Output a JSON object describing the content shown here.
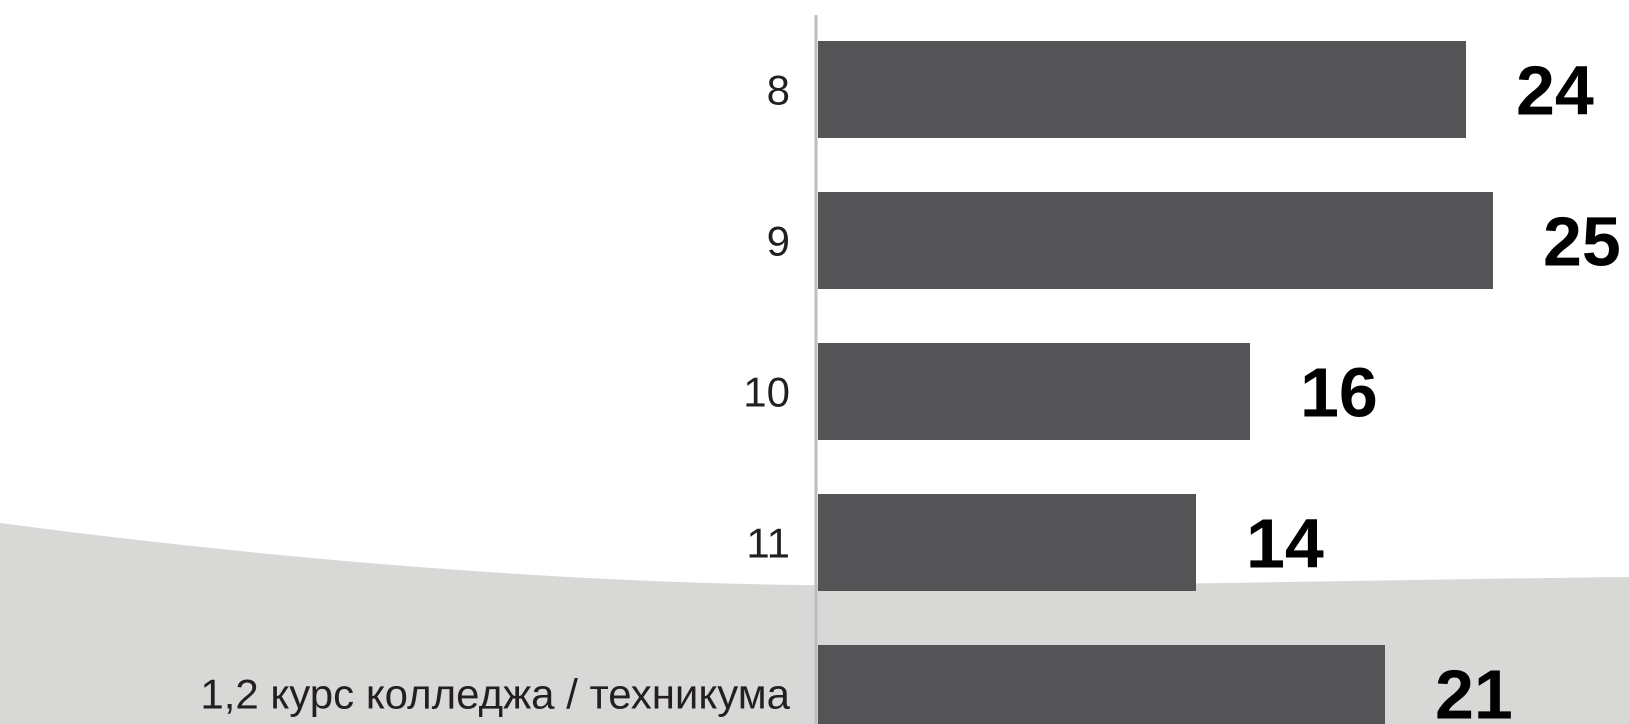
{
  "colors": {
    "background": "#ffffff",
    "wave": "#d8d8d6",
    "bar": "#545456",
    "axis": "#bdbdbd",
    "label": "#231f20",
    "value": "#000000"
  },
  "chart_data": {
    "type": "bar",
    "orientation": "horizontal",
    "categories": [
      "8",
      "9",
      "10",
      "11",
      "1,2 курс колледжа / техникума"
    ],
    "values": [
      24,
      25,
      16,
      14,
      21
    ],
    "value_labels": [
      "24",
      "25",
      "16",
      "14",
      "21"
    ],
    "title": "",
    "xlabel": "",
    "ylabel": "",
    "xlim": [
      0,
      25
    ],
    "grid": false,
    "legend": "none"
  }
}
